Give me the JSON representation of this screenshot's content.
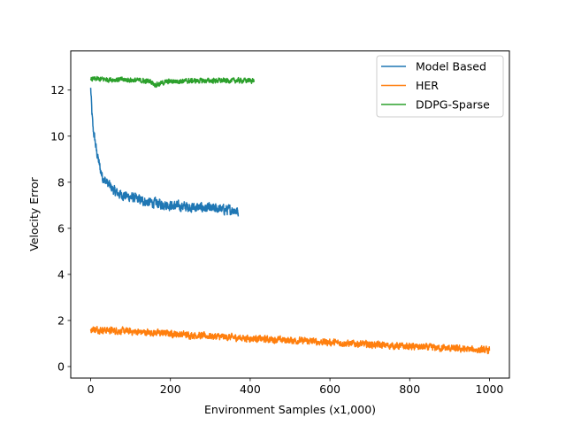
{
  "chart_data": {
    "type": "line",
    "title": "",
    "xlabel": "Environment Samples (x1,000)",
    "ylabel": "Velocity Error",
    "xlim": [
      -50,
      1050
    ],
    "ylim": [
      -0.5,
      13.7
    ],
    "xticks": [
      0,
      200,
      400,
      600,
      800,
      1000
    ],
    "yticks": [
      0,
      2,
      4,
      6,
      8,
      10,
      12
    ],
    "grid": false,
    "legend_position": "top-right",
    "series": [
      {
        "name": "Model Based",
        "color": "#1f77b4",
        "x": [
          0,
          3,
          6,
          10,
          15,
          20,
          25,
          30,
          40,
          50,
          60,
          70,
          80,
          90,
          100,
          120,
          140,
          160,
          180,
          200,
          220,
          240,
          260,
          280,
          300,
          320,
          340,
          360,
          370
        ],
        "y": [
          12.1,
          11.0,
          10.3,
          9.9,
          9.3,
          8.9,
          8.5,
          8.2,
          8.0,
          7.8,
          7.6,
          7.5,
          7.45,
          7.4,
          7.35,
          7.25,
          7.15,
          7.1,
          7.05,
          7.0,
          6.95,
          6.95,
          6.9,
          6.9,
          6.85,
          6.85,
          6.8,
          6.8,
          6.7
        ],
        "noise": 0.32
      },
      {
        "name": "HER",
        "color": "#ff7f0e",
        "x": [
          0,
          50,
          100,
          150,
          200,
          250,
          300,
          350,
          400,
          450,
          500,
          550,
          600,
          650,
          700,
          750,
          800,
          850,
          900,
          950,
          1000
        ],
        "y": [
          1.62,
          1.57,
          1.52,
          1.48,
          1.43,
          1.37,
          1.32,
          1.27,
          1.22,
          1.18,
          1.14,
          1.1,
          1.05,
          1.0,
          0.96,
          0.91,
          0.87,
          0.83,
          0.79,
          0.74,
          0.7
        ],
        "noise": 0.22
      },
      {
        "name": "DDPG-Sparse",
        "color": "#2ca02c",
        "x": [
          0,
          50,
          100,
          150,
          160,
          170,
          180,
          200,
          250,
          300,
          350,
          410
        ],
        "y": [
          12.48,
          12.46,
          12.44,
          12.38,
          12.25,
          12.25,
          12.32,
          12.38,
          12.4,
          12.41,
          12.41,
          12.42
        ],
        "noise": 0.16
      }
    ]
  }
}
